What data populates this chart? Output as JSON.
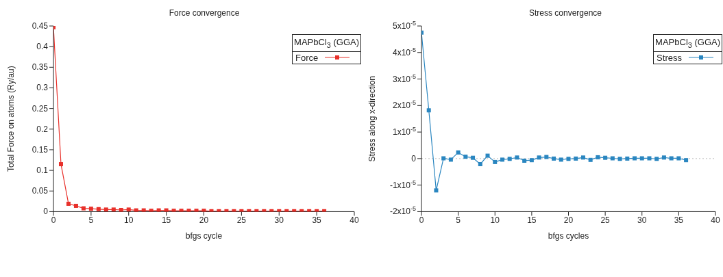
{
  "chart_data": [
    {
      "type": "line",
      "title": "Force convergence",
      "xlabel": "bfgs cycle",
      "ylabel": "Total Force on atoms (Ry/au)",
      "legend_title": "MAPbCl$_{3}$ (GGA)",
      "x": [
        0,
        1,
        2,
        3,
        4,
        5,
        6,
        7,
        8,
        9,
        10,
        11,
        12,
        13,
        14,
        15,
        16,
        17,
        18,
        19,
        20,
        21,
        22,
        23,
        24,
        25,
        26,
        27,
        28,
        29,
        30,
        31,
        32,
        33,
        34,
        35,
        36
      ],
      "series": [
        {
          "name": "Force",
          "color": "#e8302a",
          "values": [
            0.447,
            0.115,
            0.019,
            0.014,
            0.008,
            0.007,
            0.006,
            0.005,
            0.005,
            0.004,
            0.005,
            0.003,
            0.003,
            0.002,
            0.003,
            0.003,
            0.002,
            0.002,
            0.002,
            0.002,
            0.002,
            0.001,
            0.001,
            0.001,
            0.001,
            0.001,
            0.001,
            0.001,
            0.001,
            0.001,
            0.001,
            0.001,
            0.001,
            0.001,
            0.001,
            0.001,
            0.001
          ]
        }
      ],
      "xlim": [
        0,
        40
      ],
      "xticks": [
        0,
        5,
        10,
        15,
        20,
        25,
        30,
        35,
        40
      ],
      "ylim": [
        0,
        0.45
      ],
      "yticks": [
        0,
        0.05,
        0.1,
        0.15,
        0.2,
        0.25,
        0.3,
        0.35,
        0.4,
        0.45
      ],
      "grid": false,
      "legend": "top right",
      "marker": "square",
      "line_style": "solid"
    },
    {
      "type": "line",
      "title": "Stress convergence",
      "xlabel": "bfgs cycles",
      "ylabel": "Stress along x-direction",
      "legend_title": "MAPbCl$_{3}$ (GGA)",
      "x": [
        0,
        1,
        2,
        3,
        4,
        5,
        6,
        7,
        8,
        9,
        10,
        11,
        12,
        13,
        14,
        15,
        16,
        17,
        18,
        19,
        20,
        21,
        22,
        23,
        24,
        25,
        26,
        27,
        28,
        29,
        30,
        31,
        32,
        33,
        34,
        35,
        36
      ],
      "series": [
        {
          "name": "Stress",
          "color": "#2a86c0",
          "values": [
            4.75e-05,
            1.82e-05,
            -1.2e-05,
            1e-07,
            -4e-07,
            2.3e-06,
            7e-07,
            3e-07,
            -2.1e-06,
            1.1e-06,
            -1.3e-06,
            -4e-07,
            -1e-07,
            4e-07,
            -8e-07,
            -6e-07,
            4e-07,
            6e-07,
            0,
            -4e-07,
            -1e-07,
            0,
            4e-07,
            -5e-07,
            5e-07,
            3e-07,
            1e-07,
            -1e-07,
            0,
            1e-07,
            1e-07,
            1e-07,
            -1e-07,
            4e-07,
            1e-07,
            1e-07,
            -6e-07
          ]
        }
      ],
      "xlim": [
        0,
        40
      ],
      "xticks": [
        0,
        5,
        10,
        15,
        20,
        25,
        30,
        35,
        40
      ],
      "ylim": [
        -2e-05,
        5e-05
      ],
      "yticks": [
        {
          "value": -2e-05,
          "label": "-2x10$^{-5}$"
        },
        {
          "value": -1e-05,
          "label": "-1x10$^{-5}$"
        },
        {
          "value": 0,
          "label": "0"
        },
        {
          "value": 1e-05,
          "label": "1x10$^{-5}$"
        },
        {
          "value": 2e-05,
          "label": "2x10$^{-5}$"
        },
        {
          "value": 3e-05,
          "label": "3x10$^{-5}$"
        },
        {
          "value": 4e-05,
          "label": "4x10$^{-5}$"
        },
        {
          "value": 5e-05,
          "label": "5x10$^{-5}$"
        }
      ],
      "ref_lines": [
        {
          "axis": "y",
          "value": 0,
          "label": null,
          "color": "#bbbbbb",
          "line_style": "dotted"
        }
      ],
      "grid": false,
      "legend": "top right",
      "marker": "square",
      "line_style": "solid"
    }
  ]
}
